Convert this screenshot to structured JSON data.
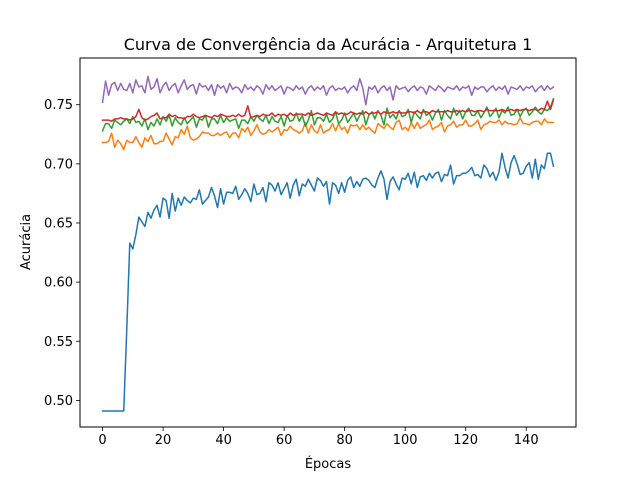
{
  "chart_data": {
    "type": "line",
    "title": "Curva de Convergência da Acurácia - Arquitetura 1",
    "xlabel": "Épocas",
    "ylabel": "Acurácia",
    "xlim": [
      -7.45,
      156.45
    ],
    "ylim": [
      0.4775,
      0.7895
    ],
    "xticks": [
      0,
      20,
      40,
      60,
      80,
      100,
      120,
      140
    ],
    "yticks": [
      0.5,
      0.55,
      0.6,
      0.65,
      0.7,
      0.75
    ],
    "xtick_labels": [
      "0",
      "20",
      "40",
      "60",
      "80",
      "100",
      "120",
      "140"
    ],
    "ytick_labels": [
      "0.50",
      "0.55",
      "0.60",
      "0.65",
      "0.70",
      "0.75"
    ],
    "grid": false,
    "legend": "none",
    "x": [
      0,
      1,
      2,
      3,
      4,
      5,
      6,
      7,
      8,
      9,
      10,
      11,
      12,
      13,
      14,
      15,
      16,
      17,
      18,
      19,
      20,
      21,
      22,
      23,
      24,
      25,
      26,
      27,
      28,
      29,
      30,
      31,
      32,
      33,
      34,
      35,
      36,
      37,
      38,
      39,
      40,
      41,
      42,
      43,
      44,
      45,
      46,
      47,
      48,
      49,
      50,
      51,
      52,
      53,
      54,
      55,
      56,
      57,
      58,
      59,
      60,
      61,
      62,
      63,
      64,
      65,
      66,
      67,
      68,
      69,
      70,
      71,
      72,
      73,
      74,
      75,
      76,
      77,
      78,
      79,
      80,
      81,
      82,
      83,
      84,
      85,
      86,
      87,
      88,
      89,
      90,
      91,
      92,
      93,
      94,
      95,
      96,
      97,
      98,
      99,
      100,
      101,
      102,
      103,
      104,
      105,
      106,
      107,
      108,
      109,
      110,
      111,
      112,
      113,
      114,
      115,
      116,
      117,
      118,
      119,
      120,
      121,
      122,
      123,
      124,
      125,
      126,
      127,
      128,
      129,
      130,
      131,
      132,
      133,
      134,
      135,
      136,
      137,
      138,
      139,
      140,
      141,
      142,
      143,
      144,
      145,
      146,
      147,
      148,
      149
    ],
    "series": [
      {
        "color": "#1f77b4",
        "values": [
          0.491,
          0.491,
          0.491,
          0.491,
          0.491,
          0.491,
          0.491,
          0.491,
          0.56,
          0.633,
          0.628,
          0.64,
          0.655,
          0.651,
          0.647,
          0.659,
          0.654,
          0.661,
          0.665,
          0.655,
          0.671,
          0.669,
          0.654,
          0.675,
          0.66,
          0.671,
          0.665,
          0.672,
          0.669,
          0.667,
          0.671,
          0.67,
          0.678,
          0.666,
          0.669,
          0.672,
          0.68,
          0.673,
          0.663,
          0.679,
          0.666,
          0.676,
          0.676,
          0.675,
          0.681,
          0.67,
          0.674,
          0.679,
          0.675,
          0.668,
          0.683,
          0.674,
          0.675,
          0.68,
          0.668,
          0.684,
          0.682,
          0.677,
          0.684,
          0.674,
          0.679,
          0.684,
          0.671,
          0.682,
          0.687,
          0.673,
          0.683,
          0.681,
          0.687,
          0.682,
          0.677,
          0.688,
          0.686,
          0.681,
          0.685,
          0.666,
          0.684,
          0.682,
          0.675,
          0.684,
          0.676,
          0.686,
          0.689,
          0.68,
          0.685,
          0.681,
          0.687,
          0.688,
          0.686,
          0.682,
          0.68,
          0.688,
          0.694,
          0.687,
          0.67,
          0.685,
          0.689,
          0.683,
          0.678,
          0.688,
          0.687,
          0.692,
          0.683,
          0.693,
          0.68,
          0.689,
          0.69,
          0.686,
          0.692,
          0.688,
          0.692,
          0.693,
          0.685,
          0.691,
          0.69,
          0.699,
          0.683,
          0.69,
          0.69,
          0.692,
          0.692,
          0.694,
          0.697,
          0.69,
          0.691,
          0.688,
          0.699,
          0.696,
          0.689,
          0.693,
          0.686,
          0.693,
          0.709,
          0.697,
          0.688,
          0.701,
          0.707,
          0.7,
          0.691,
          0.692,
          0.698,
          0.701,
          0.688,
          0.704,
          0.687,
          0.699,
          0.696,
          0.709,
          0.709,
          0.698
        ]
      },
      {
        "color": "#ff7f0e",
        "values": [
          0.718,
          0.718,
          0.719,
          0.726,
          0.714,
          0.72,
          0.717,
          0.712,
          0.72,
          0.718,
          0.718,
          0.723,
          0.718,
          0.714,
          0.722,
          0.719,
          0.724,
          0.717,
          0.717,
          0.719,
          0.719,
          0.726,
          0.721,
          0.716,
          0.723,
          0.722,
          0.729,
          0.725,
          0.732,
          0.722,
          0.72,
          0.721,
          0.723,
          0.727,
          0.726,
          0.726,
          0.724,
          0.724,
          0.726,
          0.724,
          0.726,
          0.727,
          0.722,
          0.726,
          0.726,
          0.722,
          0.73,
          0.727,
          0.731,
          0.724,
          0.728,
          0.733,
          0.727,
          0.725,
          0.726,
          0.729,
          0.727,
          0.729,
          0.731,
          0.724,
          0.729,
          0.728,
          0.732,
          0.729,
          0.728,
          0.726,
          0.728,
          0.735,
          0.726,
          0.733,
          0.728,
          0.726,
          0.733,
          0.726,
          0.728,
          0.729,
          0.734,
          0.728,
          0.734,
          0.729,
          0.731,
          0.726,
          0.733,
          0.732,
          0.733,
          0.729,
          0.733,
          0.729,
          0.731,
          0.728,
          0.726,
          0.734,
          0.732,
          0.73,
          0.734,
          0.731,
          0.729,
          0.735,
          0.737,
          0.729,
          0.731,
          0.728,
          0.735,
          0.73,
          0.735,
          0.73,
          0.732,
          0.733,
          0.737,
          0.729,
          0.731,
          0.732,
          0.735,
          0.727,
          0.732,
          0.733,
          0.736,
          0.731,
          0.733,
          0.733,
          0.737,
          0.732,
          0.732,
          0.734,
          0.737,
          0.729,
          0.733,
          0.734,
          0.736,
          0.735,
          0.735,
          0.737,
          0.733,
          0.736,
          0.734,
          0.734,
          0.733,
          0.734,
          0.739,
          0.734,
          0.734,
          0.733,
          0.735,
          0.736,
          0.736,
          0.733,
          0.738,
          0.735,
          0.735,
          0.735
        ]
      },
      {
        "color": "#2ca02c",
        "values": [
          0.728,
          0.734,
          0.734,
          0.73,
          0.737,
          0.735,
          0.733,
          0.736,
          0.738,
          0.734,
          0.74,
          0.735,
          0.736,
          0.732,
          0.738,
          0.729,
          0.735,
          0.732,
          0.738,
          0.733,
          0.74,
          0.736,
          0.741,
          0.732,
          0.739,
          0.735,
          0.733,
          0.739,
          0.734,
          0.737,
          0.74,
          0.731,
          0.738,
          0.737,
          0.741,
          0.731,
          0.738,
          0.738,
          0.734,
          0.741,
          0.735,
          0.739,
          0.736,
          0.737,
          0.738,
          0.73,
          0.737,
          0.737,
          0.734,
          0.74,
          0.736,
          0.741,
          0.738,
          0.736,
          0.741,
          0.734,
          0.74,
          0.736,
          0.735,
          0.74,
          0.732,
          0.741,
          0.736,
          0.737,
          0.743,
          0.736,
          0.741,
          0.732,
          0.737,
          0.745,
          0.733,
          0.739,
          0.739,
          0.736,
          0.742,
          0.735,
          0.738,
          0.744,
          0.734,
          0.737,
          0.743,
          0.735,
          0.739,
          0.743,
          0.736,
          0.741,
          0.745,
          0.733,
          0.741,
          0.744,
          0.738,
          0.745,
          0.741,
          0.733,
          0.747,
          0.739,
          0.742,
          0.738,
          0.745,
          0.74,
          0.741,
          0.746,
          0.735,
          0.744,
          0.741,
          0.738,
          0.746,
          0.741,
          0.743,
          0.737,
          0.743,
          0.746,
          0.737,
          0.745,
          0.741,
          0.738,
          0.747,
          0.741,
          0.745,
          0.738,
          0.744,
          0.747,
          0.741,
          0.741,
          0.745,
          0.739,
          0.743,
          0.748,
          0.74,
          0.743,
          0.747,
          0.739,
          0.745,
          0.743,
          0.748,
          0.741,
          0.742,
          0.746,
          0.74,
          0.745,
          0.747,
          0.741,
          0.744,
          0.748,
          0.744,
          0.742,
          0.746,
          0.745,
          0.748,
          0.755
        ]
      },
      {
        "color": "#d62728",
        "values": [
          0.737,
          0.737,
          0.737,
          0.736,
          0.738,
          0.738,
          0.739,
          0.738,
          0.738,
          0.737,
          0.738,
          0.74,
          0.746,
          0.739,
          0.737,
          0.738,
          0.74,
          0.741,
          0.743,
          0.738,
          0.739,
          0.739,
          0.742,
          0.74,
          0.741,
          0.739,
          0.739,
          0.738,
          0.74,
          0.74,
          0.742,
          0.74,
          0.739,
          0.74,
          0.741,
          0.74,
          0.739,
          0.741,
          0.74,
          0.742,
          0.741,
          0.74,
          0.74,
          0.741,
          0.74,
          0.742,
          0.74,
          0.741,
          0.749,
          0.739,
          0.74,
          0.741,
          0.74,
          0.742,
          0.741,
          0.741,
          0.743,
          0.74,
          0.742,
          0.741,
          0.742,
          0.74,
          0.743,
          0.741,
          0.742,
          0.742,
          0.742,
          0.741,
          0.743,
          0.741,
          0.742,
          0.743,
          0.742,
          0.741,
          0.743,
          0.742,
          0.741,
          0.744,
          0.742,
          0.743,
          0.742,
          0.742,
          0.744,
          0.743,
          0.742,
          0.743,
          0.742,
          0.744,
          0.742,
          0.743,
          0.743,
          0.744,
          0.742,
          0.744,
          0.743,
          0.743,
          0.744,
          0.743,
          0.744,
          0.743,
          0.743,
          0.744,
          0.744,
          0.743,
          0.745,
          0.743,
          0.744,
          0.744,
          0.743,
          0.745,
          0.744,
          0.744,
          0.744,
          0.744,
          0.745,
          0.744,
          0.744,
          0.745,
          0.744,
          0.745,
          0.744,
          0.745,
          0.745,
          0.744,
          0.745,
          0.745,
          0.744,
          0.746,
          0.745,
          0.745,
          0.745,
          0.745,
          0.746,
          0.745,
          0.745,
          0.746,
          0.745,
          0.746,
          0.745,
          0.746,
          0.746,
          0.745,
          0.746,
          0.746,
          0.745,
          0.747,
          0.746,
          0.753,
          0.746,
          0.754
        ]
      },
      {
        "color": "#9467bd",
        "values": [
          0.752,
          0.77,
          0.758,
          0.767,
          0.769,
          0.762,
          0.768,
          0.763,
          0.762,
          0.768,
          0.76,
          0.771,
          0.765,
          0.766,
          0.76,
          0.774,
          0.763,
          0.765,
          0.772,
          0.76,
          0.766,
          0.769,
          0.762,
          0.766,
          0.768,
          0.76,
          0.766,
          0.771,
          0.763,
          0.766,
          0.767,
          0.759,
          0.768,
          0.765,
          0.766,
          0.762,
          0.767,
          0.758,
          0.767,
          0.764,
          0.766,
          0.76,
          0.768,
          0.763,
          0.765,
          0.764,
          0.76,
          0.767,
          0.763,
          0.765,
          0.762,
          0.766,
          0.764,
          0.759,
          0.767,
          0.763,
          0.766,
          0.762,
          0.764,
          0.766,
          0.759,
          0.765,
          0.764,
          0.762,
          0.766,
          0.763,
          0.765,
          0.759,
          0.764,
          0.766,
          0.762,
          0.765,
          0.763,
          0.766,
          0.758,
          0.764,
          0.766,
          0.762,
          0.764,
          0.763,
          0.765,
          0.76,
          0.764,
          0.766,
          0.762,
          0.772,
          0.764,
          0.75,
          0.765,
          0.763,
          0.766,
          0.76,
          0.764,
          0.766,
          0.762,
          0.765,
          0.754,
          0.766,
          0.763,
          0.764,
          0.765,
          0.761,
          0.764,
          0.766,
          0.762,
          0.765,
          0.764,
          0.759,
          0.766,
          0.764,
          0.762,
          0.766,
          0.764,
          0.761,
          0.765,
          0.764,
          0.763,
          0.766,
          0.762,
          0.765,
          0.764,
          0.766,
          0.758,
          0.765,
          0.763,
          0.765,
          0.765,
          0.761,
          0.764,
          0.766,
          0.762,
          0.765,
          0.763,
          0.766,
          0.759,
          0.765,
          0.764,
          0.763,
          0.766,
          0.762,
          0.765,
          0.764,
          0.766,
          0.761,
          0.764,
          0.766,
          0.762,
          0.766,
          0.763,
          0.765
        ]
      }
    ]
  }
}
